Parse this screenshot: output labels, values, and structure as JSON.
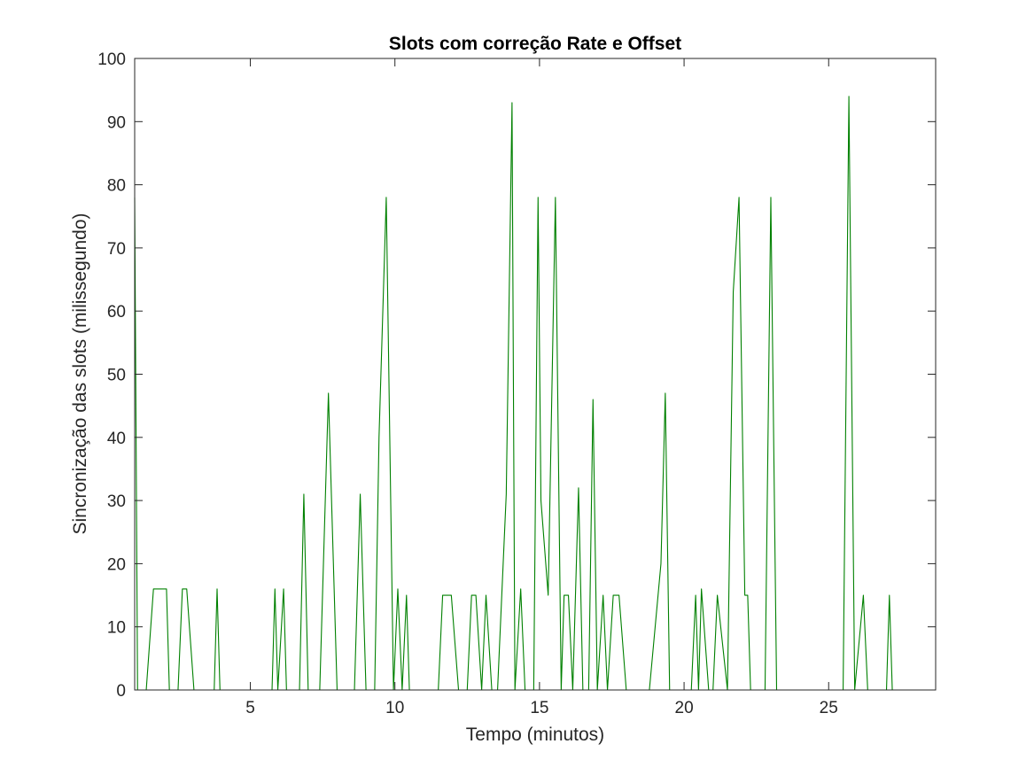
{
  "chart_data": {
    "type": "line",
    "title": "Slots com correção Rate e Offset",
    "xlabel": "Tempo (minutos)",
    "ylabel": "Sincronização das slots (milissegundo)",
    "xlim": [
      1,
      28.7
    ],
    "ylim": [
      0,
      100
    ],
    "xticks": [
      5,
      10,
      15,
      20,
      25
    ],
    "yticks": [
      0,
      10,
      20,
      30,
      40,
      50,
      60,
      70,
      80,
      90,
      100
    ],
    "grid": false,
    "line_color": "#008000",
    "series": [
      {
        "x": [
          1.0,
          1.1,
          1.4,
          1.65,
          2.1,
          2.2,
          2.5,
          2.65,
          2.8,
          3.05,
          3.2,
          3.75,
          3.85,
          3.95,
          4.5,
          5.0,
          5.5,
          5.75,
          5.85,
          5.95,
          6.15,
          6.25,
          6.35,
          6.7,
          6.85,
          7.0,
          7.4,
          7.7,
          8.0,
          8.6,
          8.8,
          9.0,
          9.3,
          9.45,
          9.7,
          9.95,
          10.1,
          10.25,
          10.4,
          10.5,
          10.7,
          11.0,
          11.5,
          11.65,
          11.95,
          12.2,
          12.5,
          12.65,
          12.8,
          13.0,
          13.15,
          13.35,
          13.55,
          13.85,
          14.05,
          14.15,
          14.35,
          14.5,
          14.75,
          14.8,
          14.95,
          15.05,
          15.3,
          15.55,
          15.75,
          15.85,
          16.0,
          16.15,
          16.35,
          16.5,
          16.7,
          16.85,
          17.0,
          17.2,
          17.35,
          17.55,
          17.75,
          18.0,
          18.8,
          19.2,
          19.35,
          19.5,
          20.0,
          20.25,
          20.4,
          20.5,
          20.6,
          20.85,
          21.0,
          21.15,
          21.5,
          21.7,
          21.9,
          22.1,
          22.2,
          22.3,
          22.6,
          22.8,
          23.0,
          23.2,
          24.0,
          25.0,
          25.5,
          25.7,
          25.9,
          26.2,
          26.35,
          26.6,
          26.7,
          27.0,
          27.1,
          27.2,
          27.55,
          27.7
        ],
        "y": [
          78,
          0,
          0,
          16,
          16,
          0,
          0,
          16,
          16,
          0,
          0,
          0,
          16,
          0,
          0,
          0,
          0,
          0,
          16,
          0,
          16,
          0,
          0,
          0,
          31,
          0,
          0,
          47,
          0,
          0,
          31,
          0,
          0,
          40,
          78,
          0,
          16,
          0,
          15,
          0,
          0,
          0,
          0,
          15,
          15,
          0,
          0,
          15,
          15,
          0,
          15,
          0,
          0,
          31,
          93,
          0,
          16,
          0,
          0,
          0,
          78,
          30,
          15,
          78,
          0,
          15,
          15,
          0,
          32,
          0,
          0,
          46,
          0,
          15,
          0,
          15,
          15,
          0,
          0,
          20,
          47,
          0,
          0,
          0,
          15,
          0,
          16,
          0,
          0,
          15,
          0,
          63,
          78,
          15,
          15,
          0,
          0,
          0,
          78,
          0,
          0,
          0,
          0,
          94,
          0,
          15,
          0,
          0,
          0,
          0,
          15,
          0,
          0,
          0
        ]
      }
    ]
  }
}
